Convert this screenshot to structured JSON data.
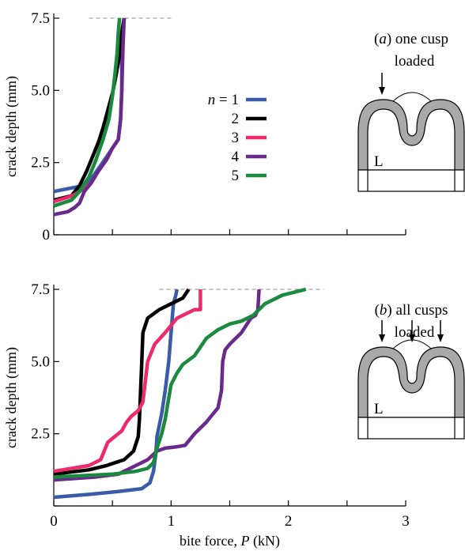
{
  "chart_data": [
    {
      "type": "line",
      "panel_label": "(a) one cusp",
      "panel_label_line2": "loaded",
      "ylabel": "crack depth (mm)",
      "xlabel": "",
      "xlim": [
        0,
        3
      ],
      "ylim": [
        0,
        7.5
      ],
      "x_ticks": [
        0,
        0.5,
        1,
        1.5,
        2,
        2.5,
        3
      ],
      "y_ticks": [
        0,
        2.5,
        5.0,
        7.5
      ],
      "y_tick_labels": [
        "0",
        "2.5",
        "5.0",
        "7.5"
      ],
      "x_tick_labels": [],
      "reference_line": {
        "y": 7.5,
        "x": [
          0.3,
          1.0
        ]
      },
      "legend": {
        "placement": "center-right",
        "entries": [
          {
            "label": "n = 1",
            "color": "#3a5ca8"
          },
          {
            "label": "2",
            "color": "#000000"
          },
          {
            "label": "3",
            "color": "#ee2a6b"
          },
          {
            "label": "4",
            "color": "#6a2a8c"
          },
          {
            "label": "5",
            "color": "#1a8a3e"
          }
        ]
      },
      "series": [
        {
          "name": "n = 1",
          "color": "#3a5ca8",
          "x": [
            0.0,
            0.25,
            0.33,
            0.4,
            0.45,
            0.5,
            0.55,
            0.57,
            0.58,
            0.58,
            0.59,
            0.6
          ],
          "y": [
            1.5,
            1.7,
            2.0,
            2.4,
            2.7,
            3.0,
            3.3,
            4.0,
            5.0,
            6.0,
            7.0,
            7.5
          ]
        },
        {
          "name": "2",
          "color": "#000000",
          "x": [
            0.0,
            0.15,
            0.22,
            0.28,
            0.33,
            0.38,
            0.42,
            0.46,
            0.5,
            0.53,
            0.56,
            0.58,
            0.6
          ],
          "y": [
            1.2,
            1.35,
            1.7,
            2.2,
            2.7,
            3.2,
            3.7,
            4.3,
            4.9,
            5.5,
            6.2,
            7.0,
            7.5
          ]
        },
        {
          "name": "3",
          "color": "#ee2a6b",
          "x": [
            0.0,
            0.12,
            0.18,
            0.22,
            0.28,
            0.32
          ],
          "y": [
            1.15,
            1.3,
            1.4,
            1.5,
            1.65,
            1.8
          ]
        },
        {
          "name": "4",
          "color": "#6a2a8c",
          "x": [
            0.0,
            0.12,
            0.18,
            0.22,
            0.26,
            0.32,
            0.38,
            0.45,
            0.5,
            0.55,
            0.57,
            0.58,
            0.59,
            0.6
          ],
          "y": [
            0.7,
            0.8,
            0.95,
            1.1,
            1.5,
            1.8,
            2.2,
            2.6,
            3.0,
            3.3,
            4.0,
            5.0,
            6.5,
            7.5
          ]
        },
        {
          "name": "5",
          "color": "#1a8a3e",
          "x": [
            0.0,
            0.15,
            0.22,
            0.3,
            0.36,
            0.42,
            0.47,
            0.5,
            0.52,
            0.54,
            0.55,
            0.56
          ],
          "y": [
            1.0,
            1.2,
            1.5,
            2.0,
            2.6,
            3.3,
            4.0,
            4.8,
            5.5,
            6.3,
            7.0,
            7.5
          ]
        }
      ],
      "inset": {
        "label": "L",
        "arrows": 1
      }
    },
    {
      "type": "line",
      "panel_label": "(b) all cusps",
      "panel_label_line2": "loaded",
      "ylabel": "crack depth (mm)",
      "xlabel": "bite force, P (kN)",
      "xlim": [
        0,
        3
      ],
      "ylim": [
        0,
        7.5
      ],
      "x_ticks": [
        0,
        0.5,
        1,
        1.5,
        2,
        2.5,
        3
      ],
      "y_ticks": [
        0,
        2.5,
        5.0,
        7.5
      ],
      "y_tick_labels": [
        "",
        "2.5",
        "5.0",
        "7.5"
      ],
      "x_tick_labels": [
        {
          "value": 0,
          "label": "0"
        },
        {
          "value": 1,
          "label": "1"
        },
        {
          "value": 2,
          "label": "2"
        },
        {
          "value": 3,
          "label": "3"
        }
      ],
      "reference_line": {
        "y": 7.5,
        "x": [
          0.9,
          2.3
        ]
      },
      "series": [
        {
          "name": "n = 1",
          "color": "#3a5ca8",
          "x": [
            0.0,
            0.3,
            0.55,
            0.75,
            0.82,
            0.85,
            0.87,
            0.88,
            0.9,
            0.92,
            0.95,
            0.98,
            1.0,
            1.02,
            1.04,
            1.05
          ],
          "y": [
            0.3,
            0.4,
            0.5,
            0.6,
            0.8,
            1.2,
            1.8,
            2.4,
            2.8,
            3.2,
            4.0,
            5.0,
            6.0,
            7.0,
            7.3,
            7.5
          ]
        },
        {
          "name": "2",
          "color": "#000000",
          "x": [
            0.0,
            0.3,
            0.45,
            0.6,
            0.68,
            0.72,
            0.73,
            0.74,
            0.75,
            0.76,
            0.8,
            0.9,
            1.0,
            1.1,
            1.15
          ],
          "y": [
            1.1,
            1.25,
            1.4,
            1.6,
            1.9,
            2.4,
            3.0,
            4.0,
            5.0,
            6.0,
            6.5,
            6.8,
            7.0,
            7.2,
            7.5
          ]
        },
        {
          "name": "3",
          "color": "#ee2a6b",
          "x": [
            0.0,
            0.3,
            0.4,
            0.46,
            0.52,
            0.58,
            0.62,
            0.66,
            0.72,
            0.76,
            0.8,
            0.86,
            0.95,
            1.05,
            1.2,
            1.25,
            1.25
          ],
          "y": [
            1.2,
            1.4,
            1.6,
            2.2,
            2.4,
            2.6,
            2.9,
            3.1,
            3.3,
            3.6,
            5.0,
            5.6,
            6.0,
            6.5,
            6.8,
            6.8,
            7.5
          ]
        },
        {
          "name": "4",
          "color": "#6a2a8c",
          "x": [
            0.0,
            0.35,
            0.55,
            0.7,
            0.8,
            0.88,
            0.95,
            1.05,
            1.12,
            1.2,
            1.3,
            1.4,
            1.43,
            1.44,
            1.46,
            1.5,
            1.6,
            1.68,
            1.72,
            1.74,
            1.75
          ],
          "y": [
            0.9,
            1.0,
            1.1,
            1.4,
            1.6,
            1.9,
            2.0,
            2.05,
            2.1,
            2.5,
            2.9,
            3.4,
            4.0,
            5.0,
            5.4,
            5.6,
            6.0,
            6.5,
            6.6,
            6.8,
            7.5
          ]
        },
        {
          "name": "5",
          "color": "#1a8a3e",
          "x": [
            0.0,
            0.5,
            0.7,
            0.8,
            0.85,
            0.88,
            0.92,
            0.95,
            0.97,
            1.0,
            1.05,
            1.1,
            1.2,
            1.3,
            1.4,
            1.5,
            1.6,
            1.7,
            1.8,
            1.95,
            2.15
          ],
          "y": [
            1.0,
            1.1,
            1.2,
            1.3,
            1.5,
            2.0,
            2.5,
            3.0,
            3.5,
            4.2,
            4.6,
            4.9,
            5.2,
            5.8,
            6.1,
            6.3,
            6.4,
            6.6,
            7.0,
            7.3,
            7.5
          ]
        }
      ],
      "inset": {
        "label": "L",
        "arrows": 3
      }
    }
  ]
}
